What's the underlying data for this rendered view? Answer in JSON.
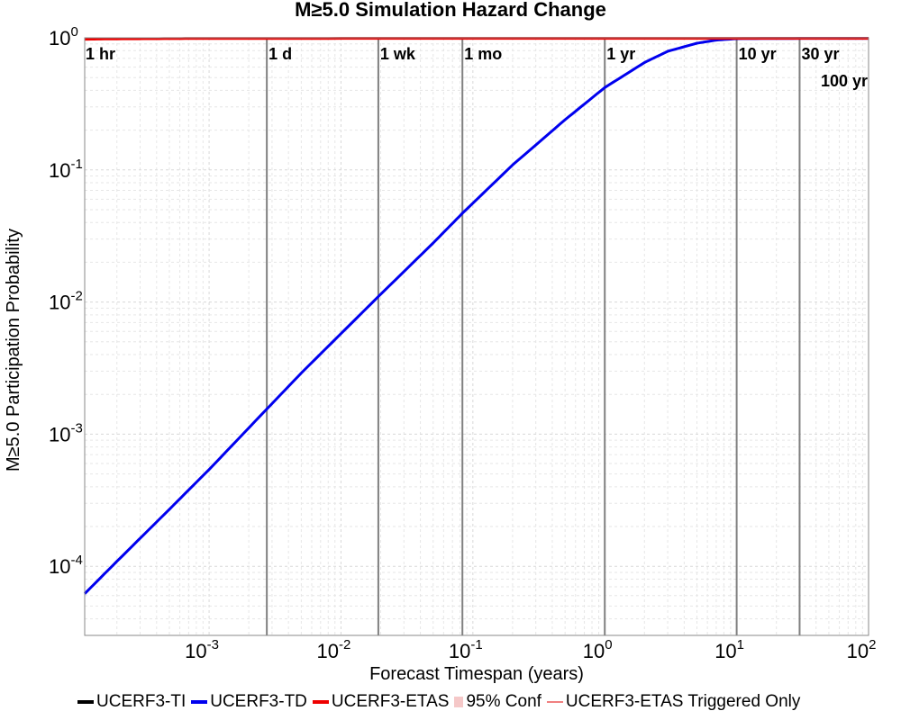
{
  "chart_data": {
    "type": "line",
    "title": "M≥5.0 Simulation Hazard Change",
    "xlabel": "Forecast Timespan (years)",
    "ylabel": "M≥5.0 Participation Probability",
    "x_scale": "log",
    "y_scale": "log",
    "xlim": [
      0.000114,
      100
    ],
    "ylim": [
      3e-05,
      1
    ],
    "grid": true,
    "legend_position": "bottom",
    "x_ticks": [
      {
        "base": "10",
        "exp": "-3",
        "value": 0.001
      },
      {
        "base": "10",
        "exp": "-2",
        "value": 0.01
      },
      {
        "base": "10",
        "exp": "-1",
        "value": 0.1
      },
      {
        "base": "10",
        "exp": "0",
        "value": 1
      },
      {
        "base": "10",
        "exp": "1",
        "value": 10
      },
      {
        "base": "10",
        "exp": "2",
        "value": 100
      }
    ],
    "y_ticks": [
      {
        "base": "10",
        "exp": "-4",
        "value": 0.0001
      },
      {
        "base": "10",
        "exp": "-3",
        "value": 0.001
      },
      {
        "base": "10",
        "exp": "-2",
        "value": 0.01
      },
      {
        "base": "10",
        "exp": "-1",
        "value": 0.1
      },
      {
        "base": "10",
        "exp": "0",
        "value": 1
      }
    ],
    "time_markers": [
      {
        "label": "1 hr",
        "x": 0.000114
      },
      {
        "label": "1 d",
        "x": 0.00274
      },
      {
        "label": "1 wk",
        "x": 0.0192
      },
      {
        "label": "1 mo",
        "x": 0.0833
      },
      {
        "label": "1 yr",
        "x": 1
      },
      {
        "label": "10 yr",
        "x": 10
      },
      {
        "label": "30 yr",
        "x": 30
      },
      {
        "label": "100 yr",
        "x": 100
      }
    ],
    "series": [
      {
        "name": "UCERF3-TI",
        "color": "#000000",
        "x": [],
        "y": []
      },
      {
        "name": "UCERF3-TD",
        "color": "#0000ee",
        "x": [
          0.000114,
          0.0002,
          0.0005,
          0.001,
          0.00274,
          0.005,
          0.0192,
          0.05,
          0.0833,
          0.2,
          0.5,
          1,
          2,
          3,
          5,
          7,
          10,
          30,
          100
        ],
        "y": [
          6.2e-05,
          0.000109,
          0.00027,
          0.00054,
          0.00155,
          0.0029,
          0.011,
          0.028,
          0.047,
          0.109,
          0.24,
          0.42,
          0.65,
          0.79,
          0.91,
          0.96,
          0.985,
          0.99,
          0.99
        ]
      },
      {
        "name": "UCERF3-ETAS",
        "color": "#ee0000",
        "x": [
          0.000114,
          0.0002,
          0.0005,
          0.001,
          0.01,
          0.1,
          1,
          10,
          100
        ],
        "y": [
          0.975,
          0.982,
          0.986,
          0.988,
          0.99,
          0.99,
          0.99,
          0.99,
          0.99
        ]
      },
      {
        "name": "95% Conf",
        "color": "#f5c8c8",
        "x": [],
        "y": []
      },
      {
        "name": "UCERF3-ETAS Triggered Only",
        "color": "#f08080",
        "x": [],
        "y": []
      }
    ]
  }
}
